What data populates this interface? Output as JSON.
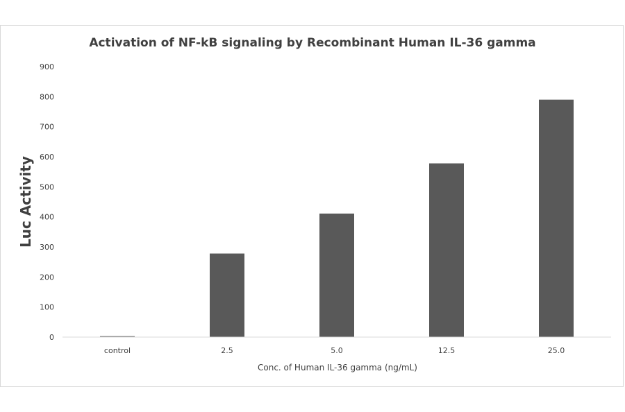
{
  "chart_data": {
    "type": "bar",
    "title": "Activation of NF-kB signaling by Recombinant Human IL-36 gamma",
    "xlabel": "Conc. of Human IL-36 gamma (ng/mL)",
    "ylabel": "Luc Activity",
    "categories": [
      "control",
      "2.5",
      "5.0",
      "12.5",
      "25.0"
    ],
    "values": [
      3,
      278,
      411,
      578,
      790
    ],
    "ylim": [
      0,
      900
    ],
    "yticks": [
      0,
      100,
      200,
      300,
      400,
      500,
      600,
      700,
      800,
      900
    ],
    "grid": false,
    "legend": "none",
    "bar_color": "#595959",
    "axis_color": "#d9d9d9"
  }
}
